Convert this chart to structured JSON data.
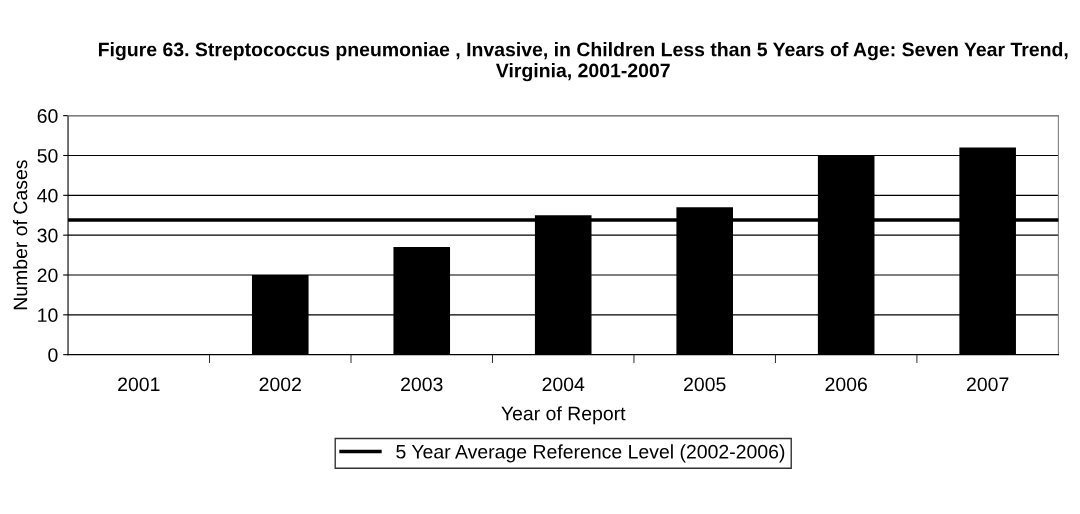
{
  "chart_data": {
    "type": "bar",
    "title": "Figure 63. Streptococcus pneumoniae , Invasive, in Children Less than 5 Years of Age: Seven Year Trend, Virginia, 2001-2007",
    "xlabel": "Year of Report",
    "ylabel": "Number of Cases",
    "categories": [
      "2001",
      "2002",
      "2003",
      "2004",
      "2005",
      "2006",
      "2007"
    ],
    "values": [
      0,
      20,
      27,
      35,
      37,
      50,
      52
    ],
    "color": "#000000",
    "ylim": [
      0,
      60
    ],
    "yticks": [
      0,
      10,
      20,
      30,
      40,
      50,
      60
    ],
    "grid": "y",
    "ref_lines": [
      {
        "axis": "y",
        "value": 33.8,
        "label": "5 Year Average Reference Level (2002-2006)",
        "color": "#000000",
        "line_style": "solid"
      }
    ],
    "legend": "bottom"
  }
}
